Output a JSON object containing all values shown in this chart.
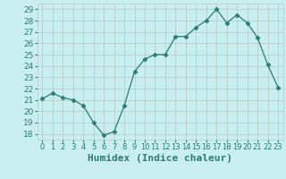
{
  "x_values": [
    0,
    1,
    2,
    3,
    4,
    5,
    6,
    7,
    8,
    9,
    10,
    11,
    12,
    13,
    14,
    15,
    16,
    17,
    18,
    19,
    20,
    21,
    22,
    23
  ],
  "y_values": [
    21.1,
    21.6,
    21.2,
    21.0,
    20.5,
    19.0,
    17.9,
    18.2,
    20.5,
    23.5,
    24.6,
    25.0,
    25.0,
    26.6,
    26.6,
    27.4,
    28.0,
    29.0,
    27.8,
    28.5,
    27.8,
    26.5,
    24.1,
    22.1
  ],
  "line_color": "#2d7a6e",
  "marker": "D",
  "marker_size": 2.5,
  "bg_color": "#c8eef0",
  "grid_color": "#b0c8c8",
  "xlabel": "Humidex (Indice chaleur)",
  "ylim": [
    17.5,
    29.5
  ],
  "xlim": [
    -0.5,
    23.5
  ],
  "yticks": [
    18,
    19,
    20,
    21,
    22,
    23,
    24,
    25,
    26,
    27,
    28,
    29
  ],
  "xtick_labels": [
    "0",
    "1",
    "2",
    "3",
    "4",
    "5",
    "6",
    "7",
    "8",
    "9",
    "10",
    "11",
    "12",
    "13",
    "14",
    "15",
    "16",
    "17",
    "18",
    "19",
    "20",
    "21",
    "22",
    "23"
  ],
  "tick_color": "#2d7a6e",
  "label_color": "#2d7a6e",
  "xlabel_fontsize": 8,
  "ytick_fontsize": 6.5,
  "xtick_fontsize": 6.0
}
